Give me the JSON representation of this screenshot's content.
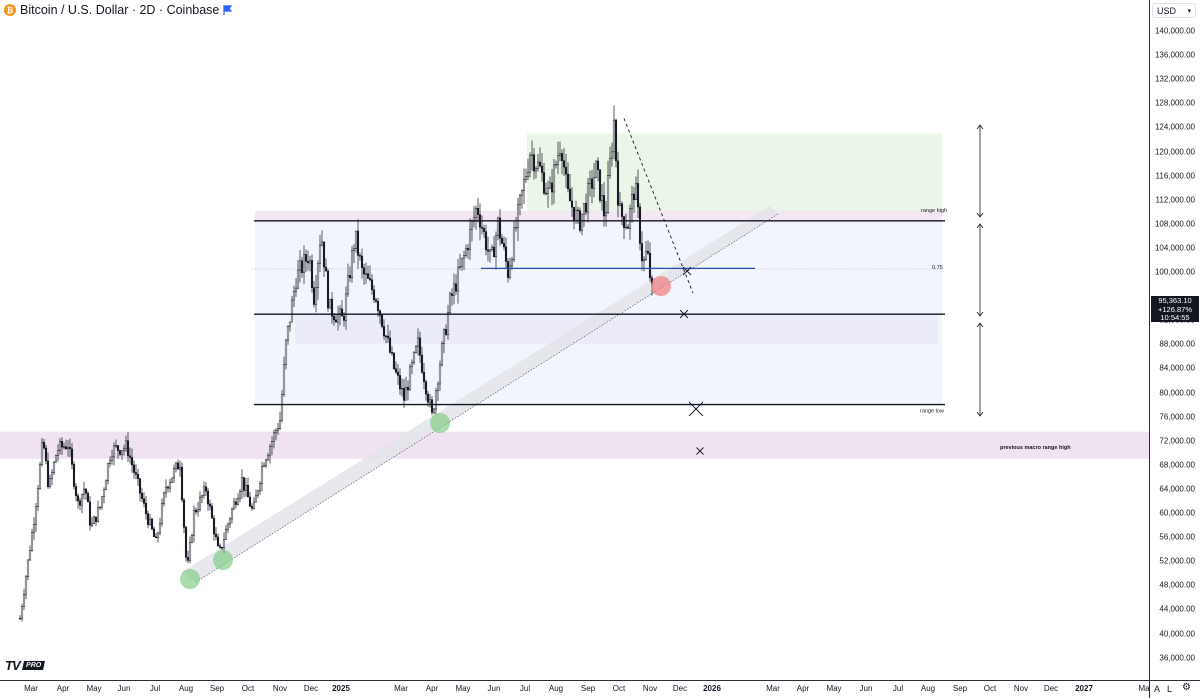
{
  "legend": {
    "title": "Bitcoin / U.S. Dollar · 2D · Coinbase",
    "coin_icon": "bitcoin-icon",
    "flag_icon": "flag-icon"
  },
  "currency": "USD",
  "last_price": {
    "price": "95,363.10",
    "change": "+126.87%",
    "countdown": "10:54:55"
  },
  "branding": {
    "logo": "TV",
    "badge": "PRO"
  },
  "corner": {
    "auto_label": "A",
    "log_label": "L",
    "settings_icon": "gear-icon"
  },
  "price_axis_labels": [
    "140,000.00",
    "136,000.00",
    "132,000.00",
    "128,000.00",
    "124,000.00",
    "120,000.00",
    "116,000.00",
    "112,000.00",
    "108,000.00",
    "104,000.00",
    "100,000.00",
    "92,000.00",
    "88,000.00",
    "84,000.00",
    "80,000.00",
    "76,000.00",
    "72,000.00",
    "68,000.00",
    "64,000.00",
    "60,000.00",
    "56,000.00",
    "52,000.00",
    "48,000.00",
    "44,000.00",
    "40,000.00",
    "36,000.00"
  ],
  "time_axis_labels": [
    {
      "label": "Mar",
      "bold": false
    },
    {
      "label": "Apr",
      "bold": false
    },
    {
      "label": "May",
      "bold": false
    },
    {
      "label": "Jun",
      "bold": false
    },
    {
      "label": "Jul",
      "bold": false
    },
    {
      "label": "Aug",
      "bold": false
    },
    {
      "label": "Sep",
      "bold": false
    },
    {
      "label": "Oct",
      "bold": false
    },
    {
      "label": "Nov",
      "bold": false
    },
    {
      "label": "Dec",
      "bold": false
    },
    {
      "label": "2025",
      "bold": true
    },
    {
      "label": "Mar",
      "bold": false
    },
    {
      "label": "Apr",
      "bold": false
    },
    {
      "label": "May",
      "bold": false
    },
    {
      "label": "Jun",
      "bold": false
    },
    {
      "label": "Jul",
      "bold": false
    },
    {
      "label": "Aug",
      "bold": false
    },
    {
      "label": "Sep",
      "bold": false
    },
    {
      "label": "Oct",
      "bold": false
    },
    {
      "label": "Nov",
      "bold": false
    },
    {
      "label": "Dec",
      "bold": false
    },
    {
      "label": "2026",
      "bold": true
    },
    {
      "label": "Mar",
      "bold": false
    },
    {
      "label": "Apr",
      "bold": false
    },
    {
      "label": "May",
      "bold": false
    },
    {
      "label": "Jun",
      "bold": false
    },
    {
      "label": "Jul",
      "bold": false
    },
    {
      "label": "Aug",
      "bold": false
    },
    {
      "label": "Sep",
      "bold": false
    },
    {
      "label": "Oct",
      "bold": false
    },
    {
      "label": "Nov",
      "bold": false
    },
    {
      "label": "Dec",
      "bold": false
    },
    {
      "label": "2027",
      "bold": true
    },
    {
      "label": "Ma",
      "bold": false
    }
  ],
  "chart_data": {
    "type": "candlestick",
    "symbol": "Bitcoin / U.S. Dollar",
    "interval": "2D",
    "exchange": "Coinbase",
    "y_range": [
      34000,
      144000
    ],
    "x_range": [
      "2024-02-15",
      "2027-03-20"
    ],
    "price_path": [
      [
        "2024-02-20",
        42500
      ],
      [
        "2024-03-05",
        59000
      ],
      [
        "2024-03-14",
        72000
      ],
      [
        "2024-03-20",
        64000
      ],
      [
        "2024-03-28",
        70500
      ],
      [
        "2024-04-08",
        71500
      ],
      [
        "2024-04-18",
        61500
      ],
      [
        "2024-04-25",
        64500
      ],
      [
        "2024-05-01",
        57500
      ],
      [
        "2024-05-10",
        61000
      ],
      [
        "2024-05-21",
        70500
      ],
      [
        "2024-06-06",
        71000
      ],
      [
        "2024-06-24",
        60500
      ],
      [
        "2024-07-05",
        55000
      ],
      [
        "2024-07-15",
        64500
      ],
      [
        "2024-07-29",
        68500
      ],
      [
        "2024-08-05",
        50000
      ],
      [
        "2024-08-12",
        60000
      ],
      [
        "2024-08-24",
        64000
      ],
      [
        "2024-09-06",
        53000
      ],
      [
        "2024-09-18",
        60000
      ],
      [
        "2024-09-29",
        65500
      ],
      [
        "2024-10-10",
        60000
      ],
      [
        "2024-10-20",
        68500
      ],
      [
        "2024-10-29",
        72000
      ],
      [
        "2024-11-06",
        75500
      ],
      [
        "2024-11-12",
        88000
      ],
      [
        "2024-11-22",
        99000
      ],
      [
        "2024-12-05",
        103000
      ],
      [
        "2024-12-10",
        96000
      ],
      [
        "2024-12-17",
        107000
      ],
      [
        "2024-12-25",
        94000
      ],
      [
        "2025-01-08",
        92000
      ],
      [
        "2025-01-20",
        106000
      ],
      [
        "2025-01-27",
        100000
      ],
      [
        "2025-02-10",
        96000
      ],
      [
        "2025-02-28",
        84000
      ],
      [
        "2025-03-10",
        79000
      ],
      [
        "2025-03-24",
        88000
      ],
      [
        "2025-04-07",
        76000
      ],
      [
        "2025-04-14",
        84000
      ],
      [
        "2025-04-25",
        95000
      ],
      [
        "2025-05-10",
        103000
      ],
      [
        "2025-05-22",
        111000
      ],
      [
        "2025-06-05",
        101500
      ],
      [
        "2025-06-12",
        108000
      ],
      [
        "2025-06-22",
        100000
      ],
      [
        "2025-06-30",
        107500
      ],
      [
        "2025-07-14",
        120000
      ],
      [
        "2025-07-24",
        117000
      ],
      [
        "2025-08-02",
        112500
      ],
      [
        "2025-08-14",
        122000
      ],
      [
        "2025-08-20",
        113000
      ],
      [
        "2025-09-01",
        108000
      ],
      [
        "2025-09-18",
        117000
      ],
      [
        "2025-09-27",
        109000
      ],
      [
        "2025-10-06",
        125000
      ],
      [
        "2025-10-11",
        110000
      ],
      [
        "2025-10-20",
        108000
      ],
      [
        "2025-10-27",
        114500
      ],
      [
        "2025-11-04",
        101000
      ],
      [
        "2025-11-08",
        103500
      ],
      [
        "2025-11-14",
        95363
      ]
    ],
    "annotations": {
      "range_high": 108500,
      "range_low": 78000,
      "level_075": 100500,
      "mid_line": 93000,
      "macro_range_high_zone": [
        69000,
        73500
      ],
      "labels": {
        "range_high": "range high",
        "range_low": "range low",
        "fib": "0.75",
        "macro": "previous macro range high"
      }
    }
  }
}
